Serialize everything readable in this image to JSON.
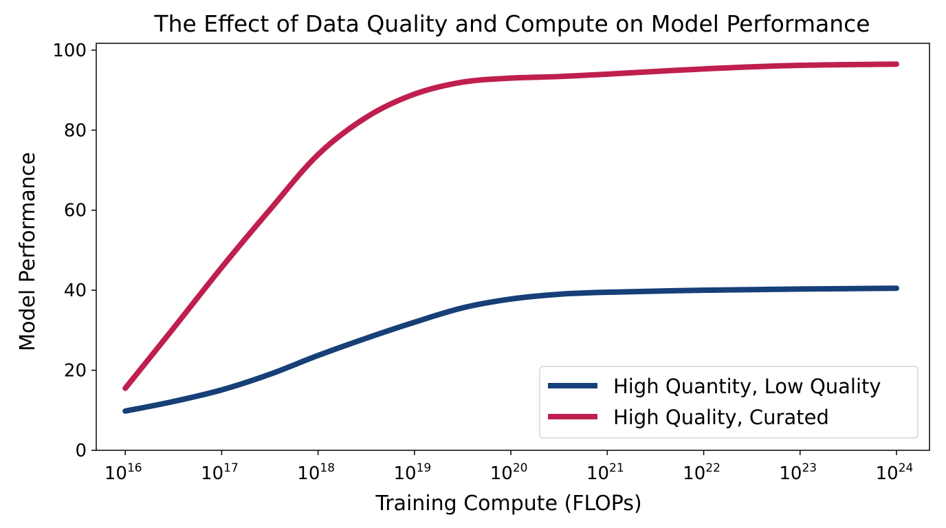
{
  "chart_data": {
    "type": "line",
    "title": "The Effect of Data Quality and Compute on Model Performance",
    "xlabel": "Training Compute (FLOPs)",
    "ylabel": "Model Performance",
    "xscale": "log",
    "xlim": [
      5000000000000000.0,
      2.2e+24
    ],
    "ylim": [
      0,
      101.7
    ],
    "grid": false,
    "legend_position": "lower-right",
    "x_ticks": [
      {
        "base": "10",
        "exp": "16"
      },
      {
        "base": "10",
        "exp": "17"
      },
      {
        "base": "10",
        "exp": "18"
      },
      {
        "base": "10",
        "exp": "19"
      },
      {
        "base": "10",
        "exp": "20"
      },
      {
        "base": "10",
        "exp": "21"
      },
      {
        "base": "10",
        "exp": "22"
      },
      {
        "base": "10",
        "exp": "23"
      },
      {
        "base": "10",
        "exp": "24"
      }
    ],
    "y_ticks": [
      "0",
      "20",
      "40",
      "60",
      "80",
      "100"
    ],
    "x": [
      1e+16,
      3.16e+16,
      1e+17,
      3.16e+17,
      1e+18,
      3.16e+18,
      1e+19,
      3.16e+19,
      1e+20,
      3.16e+20,
      1e+21,
      1e+22,
      1e+23,
      1e+24
    ],
    "series": [
      {
        "name": "High Quantity, Low Quality",
        "color": "#173f78",
        "values": [
          9.8,
          12.2,
          15.1,
          19.0,
          23.7,
          28.0,
          32.0,
          35.6,
          37.8,
          39.0,
          39.5,
          40.0,
          40.3,
          40.5
        ]
      },
      {
        "name": "High Quality, Curated",
        "color": "#bf1f4e",
        "values": [
          15.5,
          30.5,
          45.7,
          60.1,
          73.9,
          83.2,
          89.0,
          92.0,
          93.0,
          93.4,
          94.0,
          95.3,
          96.2,
          96.5
        ]
      }
    ]
  }
}
